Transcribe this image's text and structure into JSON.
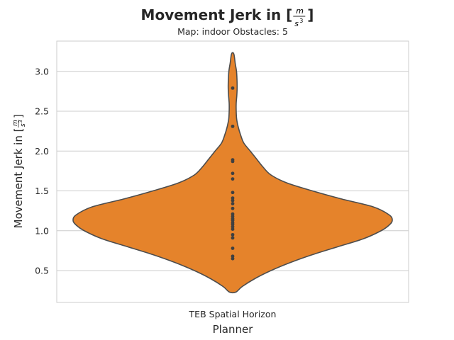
{
  "chart_data": {
    "type": "violin",
    "title_prefix": "Movement Jerk in [",
    "title_frac_num": "m",
    "title_frac_den": "s",
    "title_frac_exp": "3",
    "title_suffix": "]",
    "subtitle": "Map: indoor Obstacles: 5",
    "xlabel": "Planner",
    "ylabel_prefix": "Movement Jerk in [",
    "ylabel_frac_num": "m",
    "ylabel_frac_den": "s",
    "ylabel_frac_exp": "3",
    "ylabel_suffix": "]",
    "categories": [
      "TEB Spatial Horizon"
    ],
    "ylim": [
      0.1,
      3.38
    ],
    "yticks": [
      0.5,
      1.0,
      1.5,
      2.0,
      2.5,
      3.0
    ],
    "ytick_labels": [
      "0.5",
      "1.0",
      "1.5",
      "2.0",
      "2.5",
      "3.0"
    ],
    "grid": true,
    "violin_color": "#e5832b",
    "edge_color": "#4d4d4d",
    "point_color": "#404040",
    "violin_range": [
      0.23,
      3.22
    ],
    "density_profile": [
      [
        0.23,
        0.02
      ],
      [
        0.3,
        0.06
      ],
      [
        0.4,
        0.14
      ],
      [
        0.5,
        0.24
      ],
      [
        0.6,
        0.36
      ],
      [
        0.7,
        0.5
      ],
      [
        0.8,
        0.66
      ],
      [
        0.9,
        0.82
      ],
      [
        1.0,
        0.93
      ],
      [
        1.07,
        0.98
      ],
      [
        1.13,
        1.0
      ],
      [
        1.2,
        0.98
      ],
      [
        1.3,
        0.88
      ],
      [
        1.4,
        0.68
      ],
      [
        1.5,
        0.5
      ],
      [
        1.6,
        0.34
      ],
      [
        1.7,
        0.24
      ],
      [
        1.8,
        0.19
      ],
      [
        1.9,
        0.15
      ],
      [
        2.0,
        0.11
      ],
      [
        2.1,
        0.07
      ],
      [
        2.2,
        0.05
      ],
      [
        2.3,
        0.035
      ],
      [
        2.4,
        0.025
      ],
      [
        2.5,
        0.022
      ],
      [
        2.6,
        0.022
      ],
      [
        2.7,
        0.026
      ],
      [
        2.8,
        0.028
      ],
      [
        2.9,
        0.027
      ],
      [
        3.0,
        0.024
      ],
      [
        3.1,
        0.016
      ],
      [
        3.22,
        0.007
      ]
    ],
    "points": [
      0.65,
      0.68,
      0.78,
      0.91,
      0.95,
      1.02,
      1.05,
      1.08,
      1.1,
      1.13,
      1.15,
      1.18,
      1.21,
      1.28,
      1.34,
      1.38,
      1.41,
      1.48,
      1.65,
      1.72,
      1.87,
      1.89,
      2.31,
      2.79
    ]
  }
}
